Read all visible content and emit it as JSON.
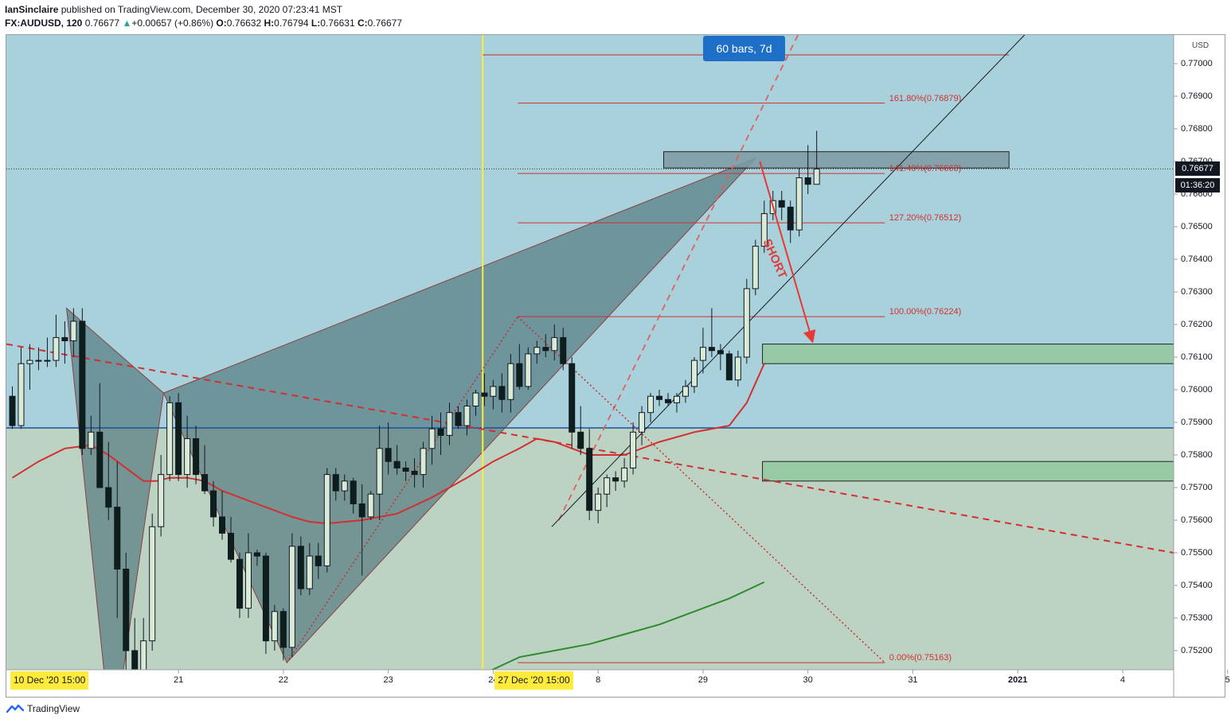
{
  "header": {
    "author": "IanSinclaire",
    "published_text": "published on TradingView.com, December 30, 2020 07:23:41 MST",
    "symbol": "FX:AUDUSD, 120",
    "last": "0.76677",
    "change_arrow": "▲",
    "change": "+0.00657 (+0.86%)",
    "o_label": "O:",
    "o": "0.76632",
    "h_label": "H:",
    "h": "0.76794",
    "l_label": "L:",
    "l": "0.76631",
    "c_label": "C:",
    "c": "0.76677"
  },
  "colors": {
    "bg_upper": "#a9d1dc",
    "bg_lower": "#bcd3c4",
    "up_candle": "#d9ead6",
    "down_candle": "#0d1f1c",
    "pattern_fill": "#557a80",
    "red": "#e53935",
    "hline_blue": "#1a4fa0",
    "green_ma": "#2e8b2e",
    "zone_fill": "#93c9a1",
    "yellow": "#ffeb3b"
  },
  "footer": {
    "brand": "TradingView"
  },
  "chart_data": {
    "type": "candlestick",
    "currency": "USD",
    "ylim": [
      0.75125,
      0.7715
    ],
    "y_ticks": [
      "0.77000",
      "0.76900",
      "0.76800",
      "0.76700",
      "0.76600",
      "0.76500",
      "0.76400",
      "0.76300",
      "0.76200",
      "0.76100",
      "0.76000",
      "0.75900",
      "0.75800",
      "0.75700",
      "0.75600",
      "0.75500",
      "0.75400",
      "0.75300",
      "0.75200"
    ],
    "x_ticks": [
      {
        "label": "21",
        "t": 19.0
      },
      {
        "label": "22",
        "t": 31.0
      },
      {
        "label": "23",
        "t": 43.0
      },
      {
        "label": "24",
        "t": 55.0
      },
      {
        "label": "8",
        "t": 67.0
      },
      {
        "label": "29",
        "t": 79.0
      },
      {
        "label": "30",
        "t": 91.0
      },
      {
        "label": "31",
        "t": 103.0
      },
      {
        "label": "2021",
        "t": 115.0
      },
      {
        "label": "4",
        "t": 127.0
      },
      {
        "label": "5",
        "t": 139.0
      }
    ],
    "x_badges": [
      {
        "label": "10 Dec '20   15:00",
        "t": 0.5
      },
      {
        "label": "27 Dec '20   15:00",
        "t": 55.9
      }
    ],
    "current_price_label": "0.76677",
    "countdown_label": "01:36:20",
    "current_price": 0.76677,
    "measure_label": "60 bars, 7d",
    "fib_levels": [
      {
        "label": "161.80%(0.76879)",
        "price": 0.76879
      },
      {
        "label": "141.40%(0.76663)",
        "price": 0.76663
      },
      {
        "label": "127.20%(0.76512)",
        "price": 0.76512
      },
      {
        "label": "100.00%(0.76224)",
        "price": 0.76224
      },
      {
        "label": "0.00%(0.75163)",
        "price": 0.75163
      }
    ],
    "annotation": "SHORT",
    "ohlc": [
      [
        0.7598,
        0.7601,
        0.7588,
        0.7589
      ],
      [
        0.7589,
        0.7613,
        0.7588,
        0.7608
      ],
      [
        0.7608,
        0.7614,
        0.76,
        0.7609
      ],
      [
        0.7609,
        0.7613,
        0.7606,
        0.7609
      ],
      [
        0.7609,
        0.7616,
        0.7607,
        0.7609
      ],
      [
        0.7609,
        0.7623,
        0.7607,
        0.7616
      ],
      [
        0.7616,
        0.7621,
        0.7608,
        0.7615
      ],
      [
        0.7615,
        0.7625,
        0.761,
        0.7621
      ],
      [
        0.7621,
        0.7625,
        0.758,
        0.7582
      ],
      [
        0.7582,
        0.7592,
        0.758,
        0.7587
      ],
      [
        0.7587,
        0.7602,
        0.757,
        0.757
      ],
      [
        0.757,
        0.7584,
        0.756,
        0.7564
      ],
      [
        0.7564,
        0.7578,
        0.753,
        0.7545
      ],
      [
        0.7545,
        0.755,
        0.75,
        0.752
      ],
      [
        0.752,
        0.753,
        0.749,
        0.751
      ],
      [
        0.751,
        0.753,
        0.7505,
        0.7523
      ],
      [
        0.7523,
        0.7562,
        0.752,
        0.7558
      ],
      [
        0.7558,
        0.758,
        0.7555,
        0.7574
      ],
      [
        0.7574,
        0.7598,
        0.7572,
        0.7596
      ],
      [
        0.7596,
        0.7599,
        0.7572,
        0.7574
      ],
      [
        0.7574,
        0.7592,
        0.757,
        0.7585
      ],
      [
        0.7585,
        0.7589,
        0.7571,
        0.7574
      ],
      [
        0.7574,
        0.7583,
        0.7568,
        0.7569
      ],
      [
        0.7569,
        0.7572,
        0.7558,
        0.7561
      ],
      [
        0.7561,
        0.7569,
        0.7554,
        0.7556
      ],
      [
        0.7556,
        0.7561,
        0.7547,
        0.7548
      ],
      [
        0.7548,
        0.755,
        0.753,
        0.7533
      ],
      [
        0.7533,
        0.7556,
        0.753,
        0.755
      ],
      [
        0.755,
        0.7551,
        0.7546,
        0.7549
      ],
      [
        0.7549,
        0.755,
        0.7519,
        0.7523
      ],
      [
        0.7523,
        0.7534,
        0.752,
        0.7532
      ],
      [
        0.7532,
        0.7533,
        0.7517,
        0.7521
      ],
      [
        0.7521,
        0.7556,
        0.7518,
        0.7552
      ],
      [
        0.7552,
        0.7555,
        0.7537,
        0.7539
      ],
      [
        0.7539,
        0.7553,
        0.7537,
        0.7549
      ],
      [
        0.7549,
        0.7553,
        0.7542,
        0.7546
      ],
      [
        0.7546,
        0.7576,
        0.7544,
        0.7574
      ],
      [
        0.7574,
        0.7576,
        0.7566,
        0.7569
      ],
      [
        0.7569,
        0.7574,
        0.7566,
        0.7572
      ],
      [
        0.7572,
        0.7573,
        0.7562,
        0.7565
      ],
      [
        0.7565,
        0.7571,
        0.7543,
        0.7561
      ],
      [
        0.7561,
        0.7569,
        0.756,
        0.7568
      ],
      [
        0.7568,
        0.7589,
        0.756,
        0.7582
      ],
      [
        0.7582,
        0.759,
        0.7574,
        0.7578
      ],
      [
        0.7578,
        0.7583,
        0.7574,
        0.7576
      ],
      [
        0.7576,
        0.7578,
        0.7572,
        0.7575
      ],
      [
        0.7575,
        0.7579,
        0.757,
        0.7574
      ],
      [
        0.7574,
        0.7584,
        0.757,
        0.7582
      ],
      [
        0.7582,
        0.7592,
        0.7577,
        0.7588
      ],
      [
        0.7588,
        0.7593,
        0.758,
        0.7586
      ],
      [
        0.7586,
        0.7596,
        0.7583,
        0.7593
      ],
      [
        0.7593,
        0.7595,
        0.7588,
        0.7589
      ],
      [
        0.7589,
        0.7597,
        0.7586,
        0.7595
      ],
      [
        0.7595,
        0.76,
        0.7592,
        0.7599
      ],
      [
        0.7599,
        0.7605,
        0.7595,
        0.7598
      ],
      [
        0.7598,
        0.7603,
        0.7594,
        0.7601
      ],
      [
        0.7601,
        0.7605,
        0.7593,
        0.7597
      ],
      [
        0.7597,
        0.7611,
        0.7593,
        0.7608
      ],
      [
        0.7608,
        0.7614,
        0.76,
        0.7601
      ],
      [
        0.7601,
        0.7613,
        0.76,
        0.7611
      ],
      [
        0.7611,
        0.7615,
        0.7608,
        0.7613
      ],
      [
        0.7613,
        0.7617,
        0.761,
        0.7612
      ],
      [
        0.7612,
        0.762,
        0.7609,
        0.7616
      ],
      [
        0.7616,
        0.7619,
        0.7606,
        0.7608
      ],
      [
        0.7608,
        0.761,
        0.7582,
        0.7587
      ],
      [
        0.7587,
        0.7595,
        0.758,
        0.7582
      ],
      [
        0.7582,
        0.7588,
        0.756,
        0.7563
      ],
      [
        0.7563,
        0.757,
        0.7559,
        0.7568
      ],
      [
        0.7568,
        0.7574,
        0.7564,
        0.7573
      ],
      [
        0.7573,
        0.7575,
        0.7569,
        0.7572
      ],
      [
        0.7572,
        0.7579,
        0.757,
        0.7576
      ],
      [
        0.7576,
        0.759,
        0.7574,
        0.7587
      ],
      [
        0.7587,
        0.7595,
        0.7583,
        0.7593
      ],
      [
        0.7593,
        0.7599,
        0.759,
        0.7598
      ],
      [
        0.7598,
        0.76,
        0.7595,
        0.7597
      ],
      [
        0.7597,
        0.7599,
        0.7595,
        0.7596
      ],
      [
        0.7596,
        0.7599,
        0.7593,
        0.7598
      ],
      [
        0.7598,
        0.7603,
        0.7596,
        0.7601
      ],
      [
        0.7601,
        0.761,
        0.7599,
        0.7609
      ],
      [
        0.7609,
        0.7619,
        0.7605,
        0.7613
      ],
      [
        0.7613,
        0.7625,
        0.761,
        0.7612
      ],
      [
        0.7612,
        0.7614,
        0.7606,
        0.7611
      ],
      [
        0.7611,
        0.7612,
        0.7603,
        0.7603
      ],
      [
        0.7603,
        0.7612,
        0.7601,
        0.761
      ],
      [
        0.761,
        0.7634,
        0.7608,
        0.7631
      ],
      [
        0.7631,
        0.7646,
        0.7629,
        0.7644
      ],
      [
        0.7644,
        0.7658,
        0.7642,
        0.7654
      ],
      [
        0.7654,
        0.7661,
        0.7652,
        0.7658
      ],
      [
        0.7658,
        0.7661,
        0.7652,
        0.7656
      ],
      [
        0.7656,
        0.7658,
        0.7645,
        0.7649
      ],
      [
        0.7649,
        0.7668,
        0.7647,
        0.7665
      ],
      [
        0.7665,
        0.7675,
        0.766,
        0.7663
      ],
      [
        0.7663,
        0.76794,
        0.76631,
        0.76677
      ]
    ]
  }
}
